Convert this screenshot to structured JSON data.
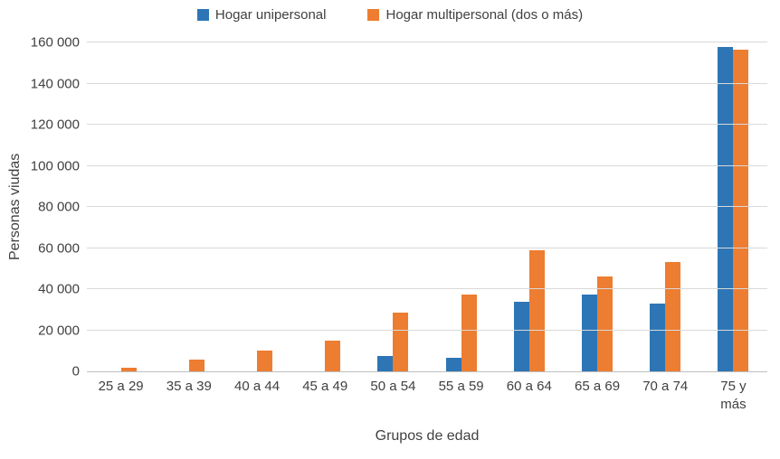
{
  "chart_data": {
    "type": "bar",
    "title": "",
    "xlabel": "Grupos de edad",
    "ylabel": "Personas viudas",
    "ylim": [
      0,
      160000
    ],
    "ytick_step": 20000,
    "ytick_labels": [
      "0",
      "20 000",
      "40 000",
      "60 000",
      "80 000",
      "100 000",
      "120 000",
      "140 000",
      "160 000"
    ],
    "grid": true,
    "legend_position": "top",
    "categories": [
      "25 a 29",
      "35 a 39",
      "40 a 44",
      "45 a 49",
      "50 a 54",
      "55 a 59",
      "60 a 64",
      "65 a 69",
      "70 a 74",
      "75 y\nmás"
    ],
    "series": [
      {
        "name": "Hogar unipersonal",
        "color": "#2e75b6",
        "values": [
          0,
          0,
          0,
          0,
          7500,
          6800,
          34000,
          37200,
          33000,
          158000
        ]
      },
      {
        "name": "Hogar multipersonal (dos o más)",
        "color": "#ed7d31",
        "values": [
          1600,
          5600,
          10200,
          14800,
          28500,
          37400,
          59000,
          46300,
          53200,
          156500
        ]
      }
    ]
  }
}
